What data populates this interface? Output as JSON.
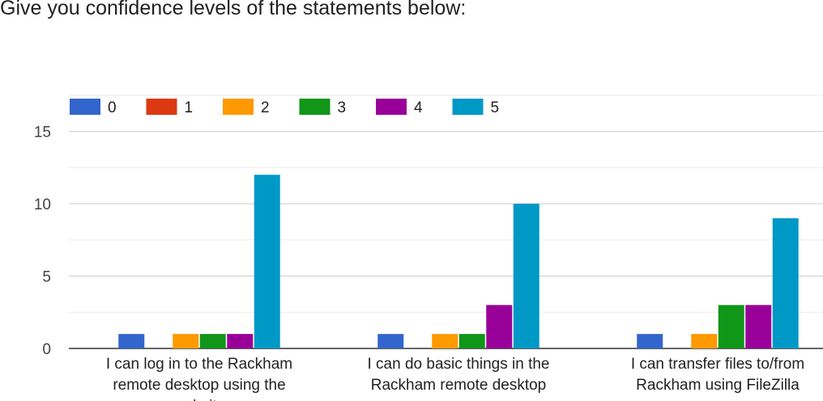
{
  "title": "Give you confidence levels of the statements below:",
  "chart_data": {
    "type": "bar",
    "categories": [
      [
        "I can log in to the Rackham",
        "remote desktop using the",
        "website"
      ],
      [
        "I can do basic things in the",
        "Rackham remote desktop"
      ],
      [
        "I can transfer files to/from",
        "Rackham using FileZilla"
      ]
    ],
    "series": [
      {
        "name": "0",
        "color": "#3366cc",
        "values": [
          1,
          1,
          1
        ]
      },
      {
        "name": "1",
        "color": "#dc3912",
        "values": [
          0,
          0,
          0
        ]
      },
      {
        "name": "2",
        "color": "#ff9900",
        "values": [
          1,
          1,
          1
        ]
      },
      {
        "name": "3",
        "color": "#109618",
        "values": [
          1,
          1,
          3
        ]
      },
      {
        "name": "4",
        "color": "#990099",
        "values": [
          1,
          3,
          3
        ]
      },
      {
        "name": "5",
        "color": "#0099c6",
        "values": [
          12,
          10,
          9
        ]
      }
    ],
    "yticks": [
      0,
      5,
      10,
      15
    ],
    "ylim": [
      0,
      17.5
    ],
    "grid": true,
    "legend_position": "top"
  }
}
